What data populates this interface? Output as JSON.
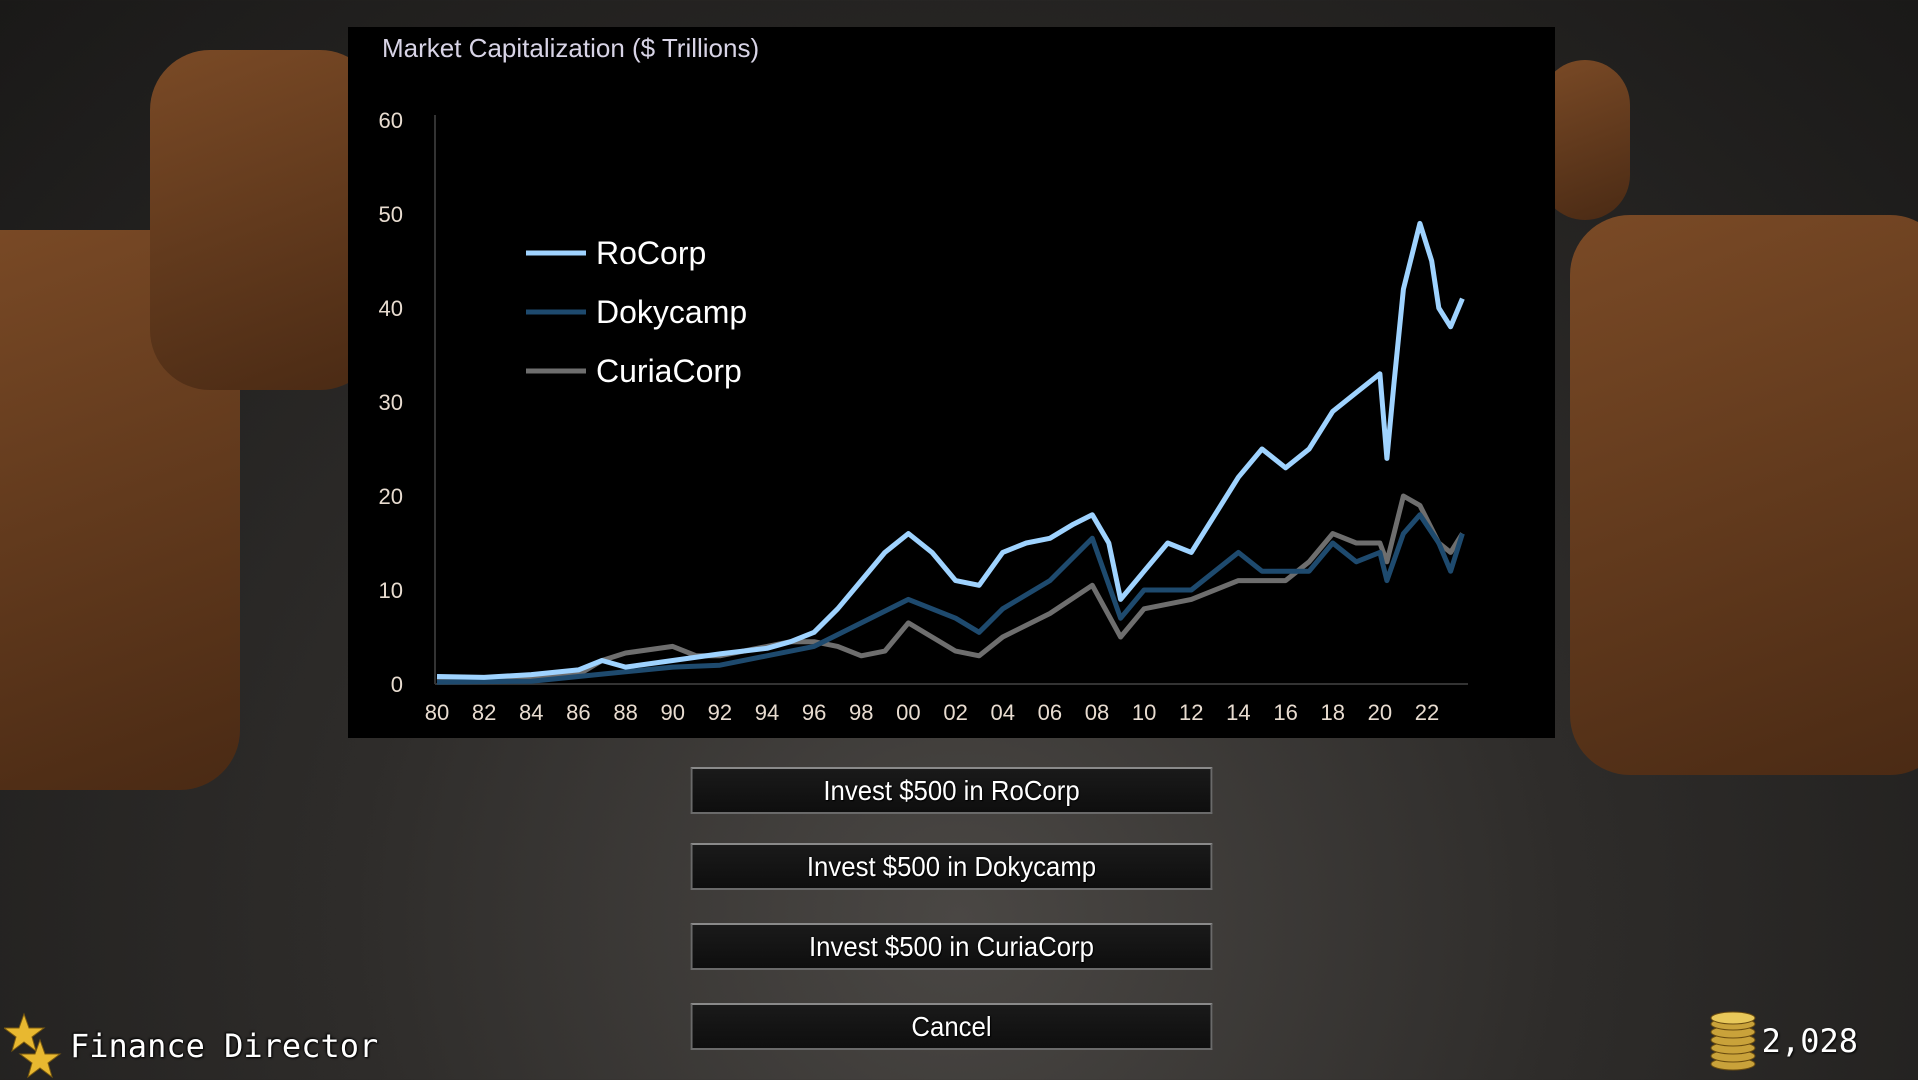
{
  "hud": {
    "rank_title": "Finance Director",
    "coins": "2,028",
    "rank_icon": "star-icon",
    "coin_icon": "coin-stack-icon"
  },
  "buttons": [
    {
      "label": "Invest $500 in RoCorp"
    },
    {
      "label": "Invest $500 in Dokycamp"
    },
    {
      "label": "Invest $500 in CuriaCorp"
    },
    {
      "label": "Cancel"
    }
  ],
  "chart_data": {
    "type": "line",
    "title": "Market Capitalization ($ Trillions)",
    "xlabel": "",
    "ylabel": "",
    "xlim": [
      1980,
      2024
    ],
    "ylim": [
      0,
      60
    ],
    "yticks": [
      0,
      10,
      20,
      30,
      40,
      50,
      60
    ],
    "xticks": [
      "80",
      "82",
      "84",
      "86",
      "88",
      "90",
      "92",
      "94",
      "96",
      "98",
      "00",
      "02",
      "04",
      "06",
      "08",
      "10",
      "12",
      "14",
      "16",
      "18",
      "20",
      "22"
    ],
    "xtick_years": [
      1980,
      1982,
      1984,
      1986,
      1988,
      1990,
      1992,
      1994,
      1996,
      1998,
      2000,
      2002,
      2004,
      2006,
      2008,
      2010,
      2012,
      2014,
      2016,
      2018,
      2020,
      2022
    ],
    "grid": false,
    "legend": "top-left",
    "series": [
      {
        "name": "RoCorp",
        "color": "#9fd3ff",
        "points": [
          [
            1980,
            0.8
          ],
          [
            1982,
            0.7
          ],
          [
            1984,
            1.0
          ],
          [
            1986,
            1.5
          ],
          [
            1987,
            2.5
          ],
          [
            1988,
            1.8
          ],
          [
            1990,
            2.5
          ],
          [
            1992,
            3.2
          ],
          [
            1994,
            3.8
          ],
          [
            1995,
            4.5
          ],
          [
            1996,
            5.5
          ],
          [
            1997,
            8
          ],
          [
            1998,
            11
          ],
          [
            1999,
            14
          ],
          [
            2000,
            16
          ],
          [
            2001,
            14
          ],
          [
            2002,
            11
          ],
          [
            2003,
            10.5
          ],
          [
            2004,
            14
          ],
          [
            2005,
            15
          ],
          [
            2006,
            15.5
          ],
          [
            2007,
            17
          ],
          [
            2007.8,
            18
          ],
          [
            2008.5,
            15
          ],
          [
            2009,
            9
          ],
          [
            2010,
            12
          ],
          [
            2011,
            15
          ],
          [
            2012,
            14
          ],
          [
            2013,
            18
          ],
          [
            2014,
            22
          ],
          [
            2015,
            25
          ],
          [
            2016,
            23
          ],
          [
            2017,
            25
          ],
          [
            2018,
            29
          ],
          [
            2019,
            31
          ],
          [
            2020,
            33
          ],
          [
            2020.3,
            24
          ],
          [
            2020.6,
            32
          ],
          [
            2021,
            42
          ],
          [
            2021.7,
            49
          ],
          [
            2022.2,
            45
          ],
          [
            2022.5,
            40
          ],
          [
            2023,
            38
          ],
          [
            2023.5,
            41
          ]
        ]
      },
      {
        "name": "Dokycamp",
        "color": "#1e4a6e",
        "points": [
          [
            1980,
            0.2
          ],
          [
            1984,
            0.3
          ],
          [
            1986,
            0.8
          ],
          [
            1988,
            1.3
          ],
          [
            1990,
            1.8
          ],
          [
            1992,
            2
          ],
          [
            1994,
            3
          ],
          [
            1996,
            4
          ],
          [
            1998,
            6.5
          ],
          [
            2000,
            9
          ],
          [
            2002,
            7
          ],
          [
            2003,
            5.5
          ],
          [
            2004,
            8
          ],
          [
            2006,
            11
          ],
          [
            2007.8,
            15.5
          ],
          [
            2009,
            7
          ],
          [
            2010,
            10
          ],
          [
            2012,
            10
          ],
          [
            2014,
            14
          ],
          [
            2015,
            12
          ],
          [
            2016,
            12
          ],
          [
            2017,
            12
          ],
          [
            2018,
            15
          ],
          [
            2019,
            13
          ],
          [
            2020,
            14
          ],
          [
            2020.3,
            11
          ],
          [
            2021,
            16
          ],
          [
            2021.7,
            18
          ],
          [
            2022.5,
            15
          ],
          [
            2023,
            12
          ],
          [
            2023.5,
            16
          ]
        ]
      },
      {
        "name": "CuriaCorp",
        "color": "#6e6e6e",
        "points": [
          [
            1980,
            0.3
          ],
          [
            1984,
            0.5
          ],
          [
            1986,
            1
          ],
          [
            1987,
            2.5
          ],
          [
            1988,
            3.3
          ],
          [
            1990,
            4
          ],
          [
            1991,
            3
          ],
          [
            1992,
            3
          ],
          [
            1994,
            4
          ],
          [
            1995,
            4.5
          ],
          [
            1996,
            4.5
          ],
          [
            1997,
            4
          ],
          [
            1998,
            3
          ],
          [
            1999,
            3.5
          ],
          [
            2000,
            6.5
          ],
          [
            2001,
            5
          ],
          [
            2002,
            3.5
          ],
          [
            2003,
            3
          ],
          [
            2004,
            5
          ],
          [
            2006,
            7.5
          ],
          [
            2007.8,
            10.5
          ],
          [
            2009,
            5
          ],
          [
            2010,
            8
          ],
          [
            2012,
            9
          ],
          [
            2014,
            11
          ],
          [
            2016,
            11
          ],
          [
            2017,
            13
          ],
          [
            2018,
            16
          ],
          [
            2019,
            15
          ],
          [
            2020,
            15
          ],
          [
            2020.3,
            13
          ],
          [
            2021,
            20
          ],
          [
            2021.7,
            19
          ],
          [
            2022.5,
            15
          ],
          [
            2023,
            14
          ],
          [
            2023.5,
            16
          ]
        ]
      }
    ]
  }
}
